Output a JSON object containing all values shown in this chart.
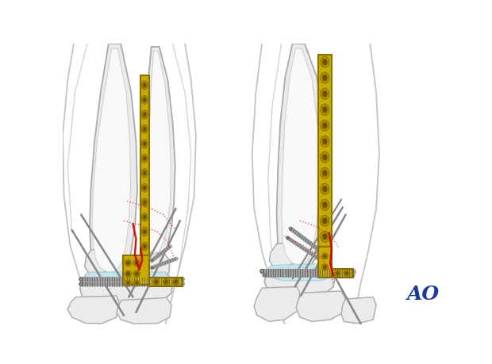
{
  "bg_color": "#ffffff",
  "bone_color": "#ebebeb",
  "bone_edge_color": "#aaaaaa",
  "bone_inner_color": "#f8f8f8",
  "plate_color": "#c8aa00",
  "plate_dark": "#8a7200",
  "plate_mid": "#b09800",
  "screw_color": "#a0a0a0",
  "screw_dark": "#606060",
  "cartilage_color": "#c5e8ee",
  "red_solid": "#cc0000",
  "red_dot": "#dd3333",
  "ao_color": "#1a3a9c",
  "wire_color": "#888888",
  "figure_width": 6.2,
  "figure_height": 4.59,
  "dpi": 100
}
